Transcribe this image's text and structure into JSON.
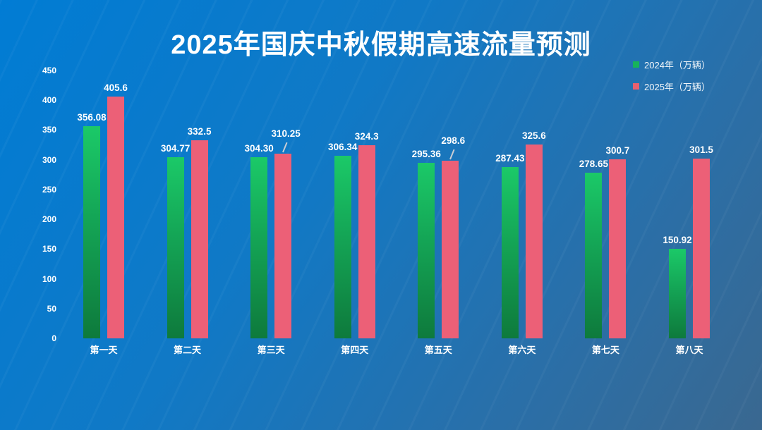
{
  "chart_data": {
    "type": "bar",
    "title": "2025年国庆中秋假期高速流量预测",
    "categories": [
      "第一天",
      "第二天",
      "第三天",
      "第四天",
      "第五天",
      "第六天",
      "第七天",
      "第八天"
    ],
    "series": [
      {
        "name": "2024年（万辆）",
        "values": [
          356.08,
          304.77,
          304.3,
          306.34,
          295.36,
          287.43,
          278.65,
          150.92
        ],
        "labels": [
          "356.08",
          "304.77",
          "304.30",
          "306.34",
          "295.36",
          "287.43",
          "278.65",
          "150.92"
        ],
        "color_top": "#1bc968",
        "color_bottom": "#0e7a3c",
        "legend_swatch_color": "#17b35b"
      },
      {
        "name": "2025年（万辆）",
        "values": [
          405.6,
          332.5,
          310.25,
          324.3,
          298.6,
          325.6,
          300.7,
          301.5
        ],
        "labels": [
          "405.6",
          "332.5",
          "310.25",
          "324.3",
          "298.6",
          "325.6",
          "300.7",
          "301.5"
        ],
        "color": "#ec6077",
        "legend_swatch_color": "#e8606f"
      }
    ],
    "ylim": [
      0,
      450
    ],
    "yticks": [
      0,
      50,
      100,
      150,
      200,
      250,
      300,
      350,
      400,
      450
    ],
    "grid": false,
    "legend_position": "top-right",
    "axis_label_color": "#ffffff",
    "value_label_color": "#ffffff",
    "background_top_left": "#017cd4",
    "background_bottom_right": "#3a6890"
  }
}
